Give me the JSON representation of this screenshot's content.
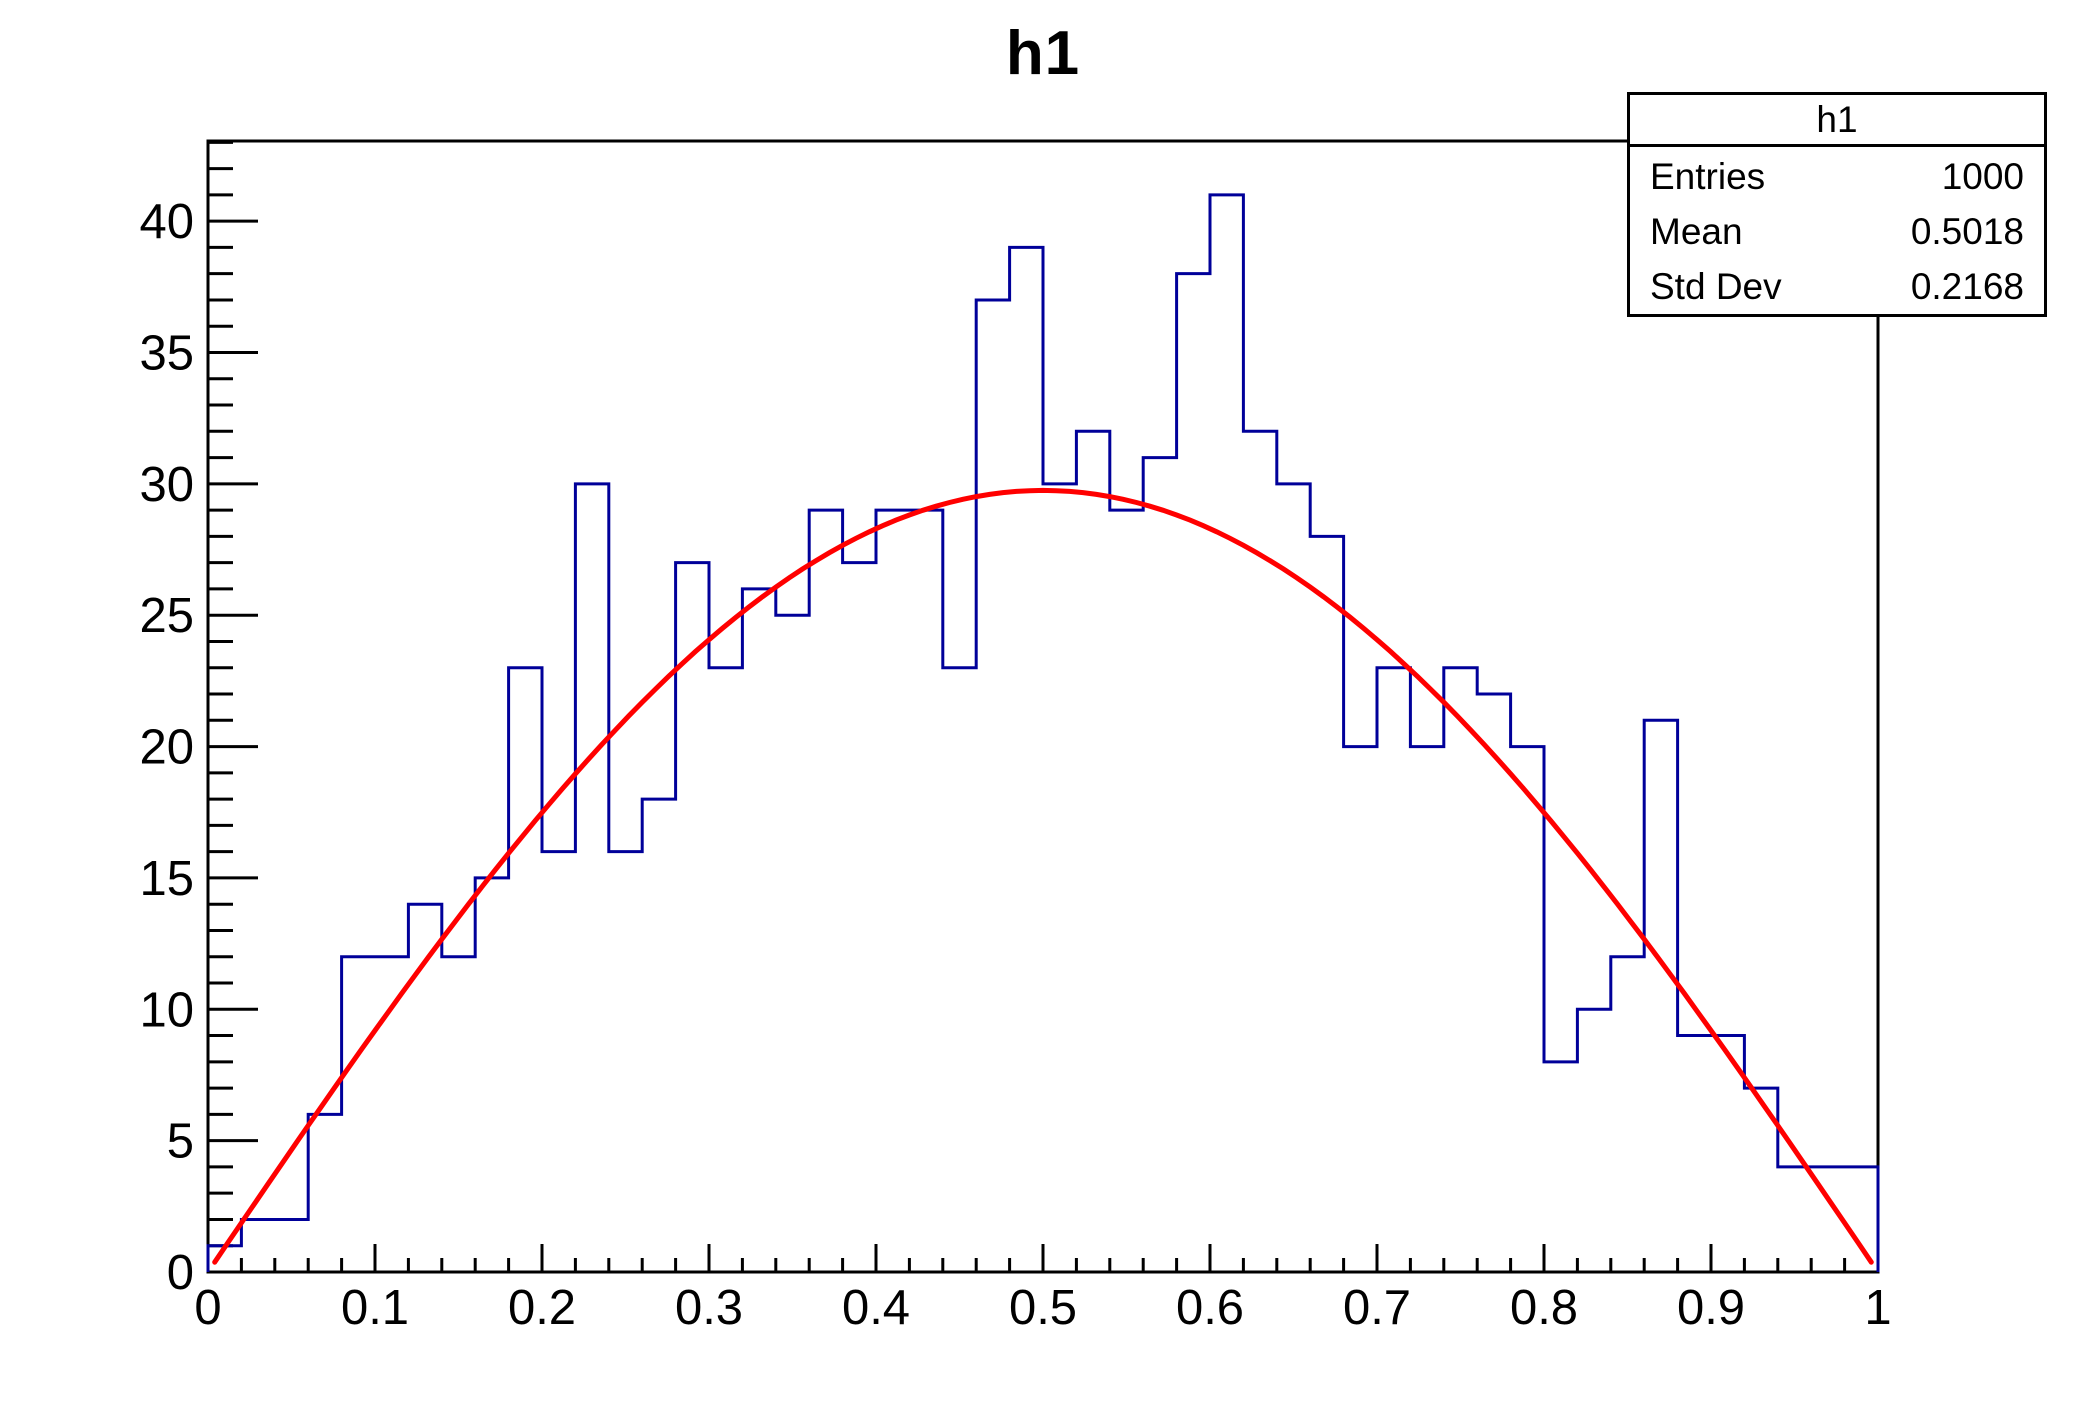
{
  "title": "h1",
  "stats": {
    "title": "h1",
    "rows": [
      {
        "label": "Entries",
        "value": "1000"
      },
      {
        "label": "Mean",
        "value": "0.5018"
      },
      {
        "label": "Std Dev",
        "value": "0.2168"
      }
    ]
  },
  "chart_data": {
    "type": "bar",
    "subtype": "step-histogram-with-fit",
    "title": "h1",
    "xlabel": "",
    "ylabel": "",
    "x_min": 0,
    "x_max": 1,
    "y_min": 0,
    "y_max": 43.05,
    "bin_start": 0,
    "bin_width": 0.02,
    "values": [
      1,
      2,
      2,
      6,
      12,
      12,
      14,
      12,
      15,
      23,
      16,
      30,
      16,
      18,
      27,
      23,
      26,
      25,
      29,
      27,
      29,
      29,
      23,
      37,
      39,
      30,
      32,
      29,
      31,
      38,
      41,
      32,
      30,
      28,
      20,
      23,
      20,
      23,
      22,
      20,
      8,
      10,
      12,
      21,
      9,
      9,
      7,
      4,
      4,
      4
    ],
    "entries_total": 1000,
    "fit": {
      "model": "A*sin(pi*x)",
      "A": 29.75,
      "x_start": 0.004,
      "x_end": 0.996
    },
    "x_ticks": [
      {
        "label": "0",
        "value": 0
      },
      {
        "label": "0.1",
        "value": 0.1
      },
      {
        "label": "0.2",
        "value": 0.2
      },
      {
        "label": "0.3",
        "value": 0.3
      },
      {
        "label": "0.4",
        "value": 0.4
      },
      {
        "label": "0.5",
        "value": 0.5
      },
      {
        "label": "0.6",
        "value": 0.6
      },
      {
        "label": "0.7",
        "value": 0.7
      },
      {
        "label": "0.8",
        "value": 0.8
      },
      {
        "label": "0.9",
        "value": 0.9
      },
      {
        "label": "1",
        "value": 1
      }
    ],
    "y_ticks": [
      {
        "label": "0",
        "value": 0
      },
      {
        "label": "5",
        "value": 5
      },
      {
        "label": "10",
        "value": 10
      },
      {
        "label": "15",
        "value": 15
      },
      {
        "label": "20",
        "value": 20
      },
      {
        "label": "25",
        "value": 25
      },
      {
        "label": "30",
        "value": 30
      },
      {
        "label": "35",
        "value": 35
      },
      {
        "label": "40",
        "value": 40
      }
    ],
    "x_minor_step": 0.02,
    "y_minor_step": 1,
    "grid": false,
    "legend_position": "none",
    "colors": {
      "hist_line": "#000099",
      "fit_line": "#ff0000",
      "axis": "#000000",
      "background": "#ffffff"
    }
  }
}
